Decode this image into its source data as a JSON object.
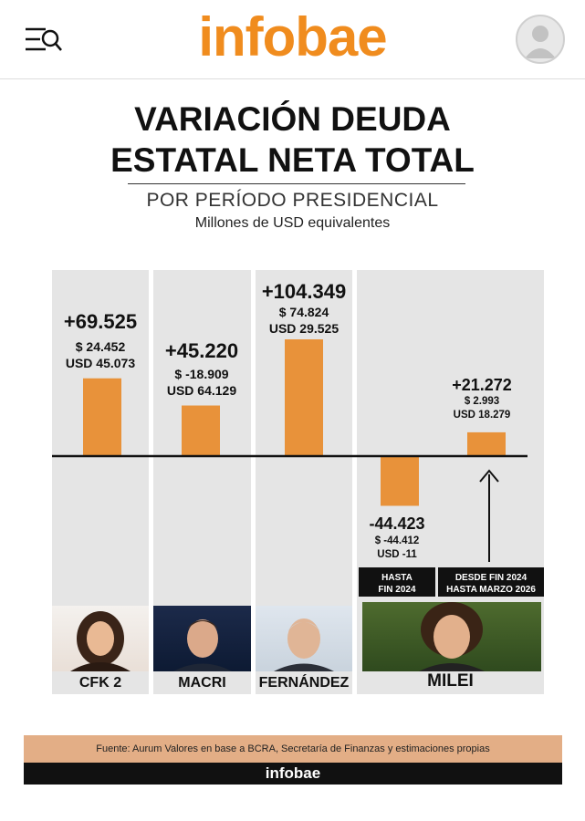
{
  "header": {
    "logo": "infobae",
    "menu_icon": "menu-search-icon",
    "avatar_icon": "user-avatar-icon"
  },
  "title_line1": "VARIACIÓN DEUDA",
  "title_line2": "ESTATAL NETA TOTAL",
  "subtitle": "POR PERÍODO PRESIDENCIAL",
  "units": "Millones de USD equivalentes",
  "colors": {
    "bar": "#e8923a",
    "panel": "#e5e5e5",
    "logo": "#f08c1e"
  },
  "chart_data": {
    "type": "bar",
    "categories": [
      "CFK 2",
      "MACRI",
      "FERNÁNDEZ",
      "HASTA FIN 2024",
      "DESDE FIN 2024 HASTA MARZO 2026"
    ],
    "values": [
      69525,
      45220,
      104349,
      -44423,
      21272
    ],
    "value_labels": [
      "+69.525",
      "+45.220",
      "+104.349",
      "-44.423",
      "+21.272"
    ],
    "breakdown": [
      {
        "pesos": "$  24.452",
        "usd": "USD  45.073"
      },
      {
        "pesos": "$  -18.909",
        "usd": "USD  64.129"
      },
      {
        "pesos": "$  74.824",
        "usd": "USD  29.525"
      },
      {
        "pesos": "$  -44.412",
        "usd": "USD  -11"
      },
      {
        "pesos": "$  2.993",
        "usd": "USD  18.279"
      }
    ],
    "period_labels": [
      {
        "line1": "HASTA",
        "line2": "FIN 2024"
      },
      {
        "line1": "DESDE FIN 2024",
        "line2": "HASTA MARZO 2026"
      }
    ],
    "group_names": [
      "CFK 2",
      "MACRI",
      "FERNÁNDEZ",
      "MILEI"
    ]
  },
  "source": "Fuente: Aurum Valores en base a BCRA, Secretaría de Finanzas y estimaciones propias",
  "footer": "infobae"
}
